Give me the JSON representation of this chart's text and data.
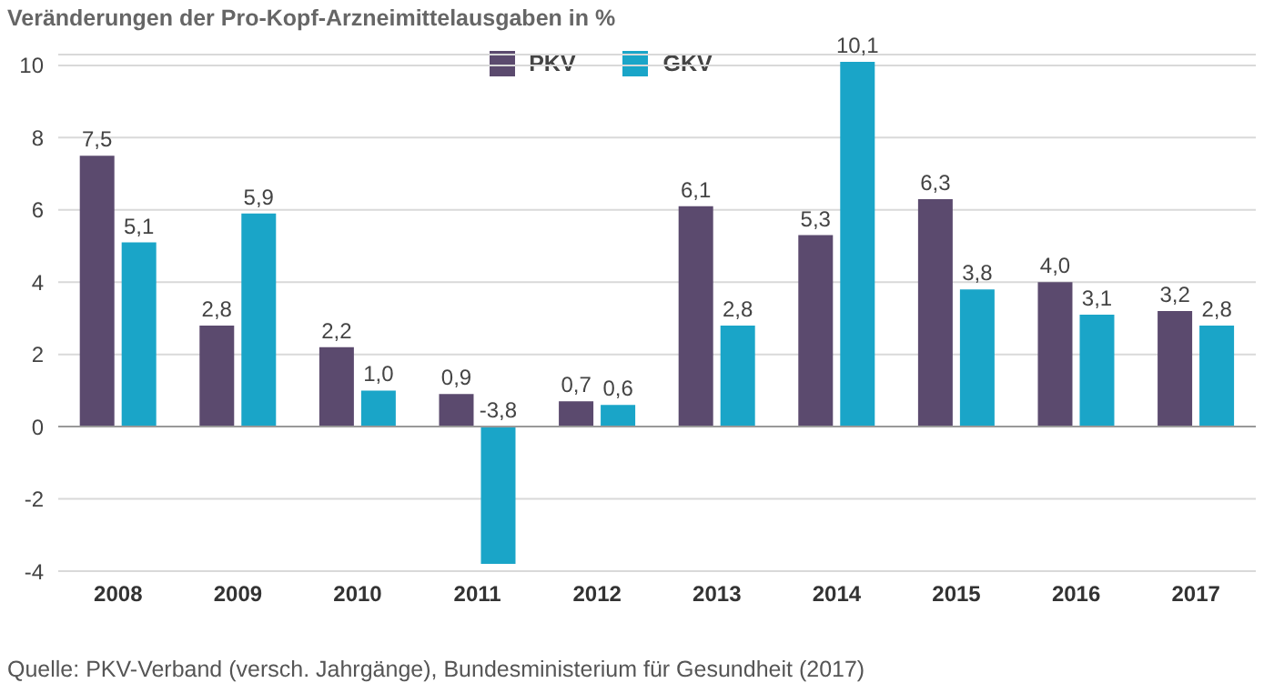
{
  "chart_data": {
    "type": "bar",
    "title": "Veränderungen der Pro-Kopf-Arzneimittelausgaben in %",
    "categories": [
      "2008",
      "2009",
      "2010",
      "2011",
      "2012",
      "2013",
      "2014",
      "2015",
      "2016",
      "2017"
    ],
    "series": [
      {
        "name": "PKV",
        "color": "#5b4a6e",
        "values": [
          7.5,
          2.8,
          2.2,
          0.9,
          0.7,
          6.1,
          5.3,
          6.3,
          4.0,
          3.2
        ],
        "value_labels": [
          "7,5",
          "2,8",
          "2,2",
          "0,9",
          "0,7",
          "6,1",
          "5,3",
          "6,3",
          "4,0",
          "3,2"
        ]
      },
      {
        "name": "GKV",
        "color": "#1aa5c8",
        "values": [
          5.1,
          5.9,
          1.0,
          -3.8,
          0.6,
          2.8,
          10.1,
          3.8,
          3.1,
          2.8
        ],
        "value_labels": [
          "5,1",
          "5,9",
          "1,0",
          "-3,8",
          "0,6",
          "2,8",
          "10,1",
          "3,8",
          "3,1",
          "2,8"
        ]
      }
    ],
    "ylim": [
      -4,
      10.3
    ],
    "yticks": [
      -4,
      -2,
      0,
      2,
      4,
      6,
      8,
      10
    ],
    "grid": "y",
    "legend": "top",
    "annotations": [
      "Quelle: PKV-Verband (versch. Jahrgänge), Bundesministerium für Gesundheit (2017)"
    ]
  }
}
